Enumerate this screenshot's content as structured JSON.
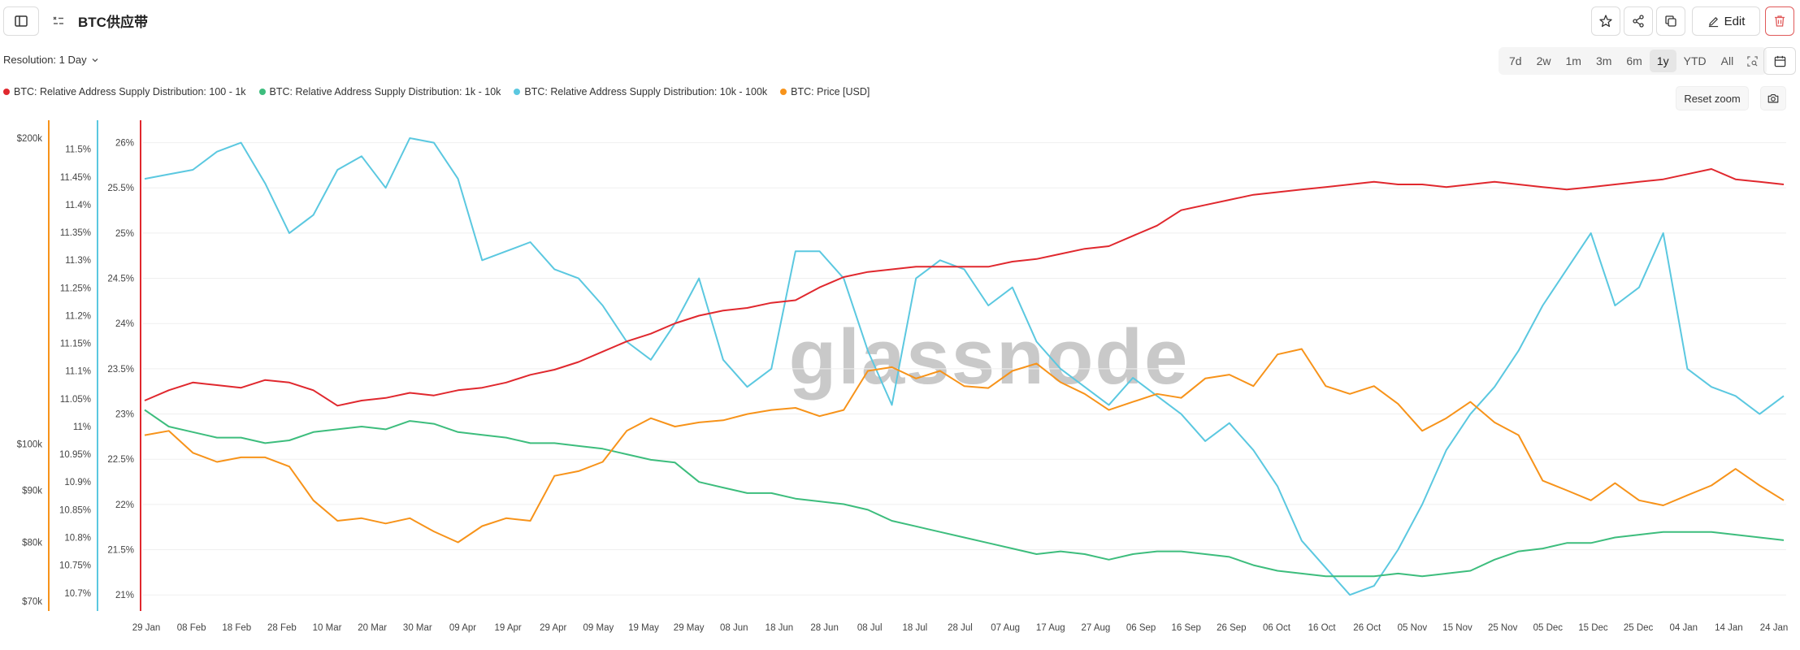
{
  "header": {
    "title": "BTC供应带",
    "edit_label": "Edit"
  },
  "toolbar": {
    "resolution_label": "Resolution: 1 Day",
    "ranges": [
      "7d",
      "2w",
      "1m",
      "3m",
      "6m",
      "1y",
      "YTD",
      "All"
    ],
    "active_range": "1y",
    "reset_zoom_label": "Reset zoom"
  },
  "icons": {
    "sidebar_toggle": "sidebar-toggle-icon",
    "metric_settings": "metric-settings-icon",
    "star": "star-icon",
    "share": "share-icon",
    "copy": "copy-icon",
    "edit": "pencil-icon",
    "delete": "trash-icon",
    "zoom": "zoom-select-icon",
    "calendar": "calendar-icon",
    "camera": "camera-icon",
    "chevron": "chevron-down-icon"
  },
  "watermark": "glassnode",
  "chart_data": {
    "type": "line",
    "x_tick_labels": [
      "29 Jan",
      "08 Feb",
      "18 Feb",
      "28 Feb",
      "10 Mar",
      "20 Mar",
      "30 Mar",
      "09 Apr",
      "19 Apr",
      "29 Apr",
      "09 May",
      "19 May",
      "29 May",
      "08 Jun",
      "18 Jun",
      "28 Jun",
      "08 Jul",
      "18 Jul",
      "28 Jul",
      "07 Aug",
      "17 Aug",
      "27 Aug",
      "06 Sep",
      "16 Sep",
      "26 Sep",
      "06 Oct",
      "16 Oct",
      "26 Oct",
      "05 Nov",
      "15 Nov",
      "25 Nov",
      "05 Dec",
      "15 Dec",
      "25 Dec",
      "04 Jan",
      "14 Jan",
      "24 Jan"
    ],
    "axes": {
      "price": {
        "scale": "log",
        "ticks": [
          "$200k",
          "$100k",
          "$90k",
          "$80k",
          "$70k"
        ],
        "tick_values": [
          200000,
          100000,
          90000,
          80000,
          70000
        ],
        "range": [
          70000,
          200000
        ],
        "color": "#f7931a"
      },
      "pct_1k_10k": {
        "ticks": [
          "11.5%",
          "11.45%",
          "11.4%",
          "11.35%",
          "11.3%",
          "11.25%",
          "11.2%",
          "11.15%",
          "11.1%",
          "11.05%",
          "11%",
          "10.95%",
          "10.9%",
          "10.85%",
          "10.8%",
          "10.75%",
          "10.7%"
        ],
        "range": [
          10.685,
          11.52
        ],
        "color": "#3dbd7d"
      },
      "pct_10k_100k": {
        "ticks": [
          "26%",
          "25.5%",
          "25%",
          "24.5%",
          "24%",
          "23.5%",
          "23%",
          "22.5%",
          "22%",
          "21.5%",
          "21%"
        ],
        "range": [
          20.93,
          26.05
        ],
        "color": "#5bc8e0"
      },
      "pct_100_1k": {
        "range": [
          9.2,
          11.0
        ],
        "color": "#e0282e",
        "visible_ticks": false
      }
    },
    "series": [
      {
        "name": "BTC: Relative Address Supply Distribution: 100 - 1k",
        "color": "#e0282e",
        "axis": "pct_100_1k",
        "values": [
          9.98,
          10.02,
          10.05,
          10.04,
          10.03,
          10.06,
          10.05,
          10.02,
          9.96,
          9.98,
          9.99,
          10.01,
          10.0,
          10.02,
          10.03,
          10.05,
          10.08,
          10.1,
          10.13,
          10.17,
          10.21,
          10.24,
          10.28,
          10.31,
          10.33,
          10.34,
          10.36,
          10.37,
          10.42,
          10.46,
          10.48,
          10.49,
          10.5,
          10.5,
          10.5,
          10.5,
          10.52,
          10.53,
          10.55,
          10.57,
          10.58,
          10.62,
          10.66,
          10.72,
          10.74,
          10.76,
          10.78,
          10.79,
          10.8,
          10.81,
          10.82,
          10.83,
          10.82,
          10.82,
          10.81,
          10.82,
          10.83,
          10.82,
          10.81,
          10.8,
          10.81,
          10.82,
          10.83,
          10.84,
          10.86,
          10.88,
          10.84,
          10.83,
          10.82
        ]
      },
      {
        "name": "BTC: Relative Address Supply Distribution: 1k - 10k",
        "color": "#3dbd7d",
        "axis": "pct_1k_10k",
        "values": [
          11.03,
          11.0,
          10.99,
          10.98,
          10.98,
          10.97,
          10.975,
          10.99,
          10.995,
          11.0,
          10.995,
          11.01,
          11.005,
          10.99,
          10.985,
          10.98,
          10.97,
          10.97,
          10.965,
          10.96,
          10.95,
          10.94,
          10.935,
          10.9,
          10.89,
          10.88,
          10.88,
          10.87,
          10.865,
          10.86,
          10.85,
          10.83,
          10.82,
          10.81,
          10.8,
          10.79,
          10.78,
          10.77,
          10.775,
          10.77,
          10.76,
          10.77,
          10.775,
          10.775,
          10.77,
          10.765,
          10.75,
          10.74,
          10.735,
          10.73,
          10.73,
          10.73,
          10.735,
          10.73,
          10.735,
          10.74,
          10.76,
          10.775,
          10.78,
          10.79,
          10.79,
          10.8,
          10.805,
          10.81,
          10.81,
          10.81,
          10.805,
          10.8,
          10.795
        ]
      },
      {
        "name": "BTC: Relative Address Supply Distribution: 10k - 100k",
        "color": "#5bc8e0",
        "axis": "pct_10k_100k",
        "values": [
          25.6,
          25.65,
          25.7,
          25.9,
          26.0,
          25.55,
          25.0,
          25.2,
          25.7,
          25.85,
          25.5,
          26.05,
          26.0,
          25.6,
          24.7,
          24.8,
          24.9,
          24.6,
          24.5,
          24.2,
          23.8,
          23.6,
          24.0,
          24.5,
          23.6,
          23.3,
          23.5,
          24.8,
          24.8,
          24.5,
          23.7,
          23.1,
          24.5,
          24.7,
          24.6,
          24.2,
          24.4,
          23.8,
          23.5,
          23.3,
          23.1,
          23.4,
          23.2,
          23.0,
          22.7,
          22.9,
          22.6,
          22.2,
          21.6,
          21.3,
          21.0,
          21.1,
          21.5,
          22.0,
          22.6,
          23.0,
          23.3,
          23.7,
          24.2,
          24.6,
          25.0,
          24.2,
          24.4,
          25.0,
          23.5,
          23.3,
          23.2,
          23.0,
          23.2
        ]
      },
      {
        "name": "BTC: Price [USD]",
        "color": "#f7931a",
        "axis": "price",
        "values": [
          102000,
          103000,
          98000,
          96000,
          97000,
          97000,
          95000,
          88000,
          84000,
          84500,
          83500,
          84500,
          82000,
          80000,
          83000,
          84500,
          84000,
          93000,
          94000,
          96000,
          103000,
          106000,
          104000,
          105000,
          105500,
          107000,
          108000,
          108500,
          106500,
          108000,
          118000,
          119000,
          116000,
          118000,
          114000,
          113500,
          118000,
          120000,
          115000,
          112000,
          108000,
          110000,
          112000,
          111000,
          116000,
          117000,
          114000,
          122500,
          124000,
          114000,
          112000,
          114000,
          109500,
          103000,
          106000,
          110000,
          105000,
          102000,
          92000,
          90000,
          88000,
          91500,
          88000,
          87000,
          89000,
          91000,
          94500,
          91000,
          88000
        ]
      }
    ],
    "legend_position": "top-left",
    "grid": "horizontal"
  }
}
